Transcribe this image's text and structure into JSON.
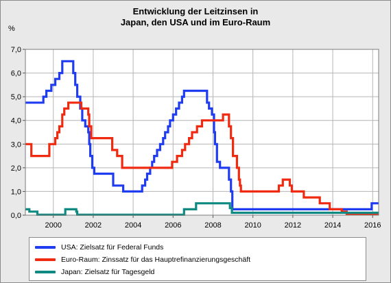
{
  "chart_data": {
    "type": "line",
    "title_lines": [
      "Entwicklung der Leitzinsen in",
      "Japan, den USA und im Euro-Raum"
    ],
    "unit_label": "%",
    "xlim": [
      1998.6,
      2016.3
    ],
    "ylim": [
      0,
      7
    ],
    "x_ticks": [
      2000,
      2002,
      2004,
      2006,
      2008,
      2010,
      2012,
      2014,
      2016
    ],
    "y_ticks": [
      "0,0",
      "1,0",
      "2,0",
      "3,0",
      "4,0",
      "5,0",
      "6,0",
      "7,0"
    ],
    "grid": true,
    "legend_position": "bottom",
    "series": [
      {
        "name": "USA: Zielsatz für Federal Funds",
        "color": "#1f3cf0",
        "step": true,
        "points": [
          [
            1998.6,
            4.75
          ],
          [
            1999.5,
            5.0
          ],
          [
            1999.65,
            5.25
          ],
          [
            1999.9,
            5.5
          ],
          [
            2000.1,
            5.75
          ],
          [
            2000.3,
            6.0
          ],
          [
            2000.45,
            6.5
          ],
          [
            2001.0,
            6.0
          ],
          [
            2001.1,
            5.5
          ],
          [
            2001.2,
            5.0
          ],
          [
            2001.35,
            4.5
          ],
          [
            2001.45,
            4.0
          ],
          [
            2001.6,
            3.75
          ],
          [
            2001.75,
            3.5
          ],
          [
            2001.8,
            3.0
          ],
          [
            2001.85,
            2.5
          ],
          [
            2001.95,
            2.0
          ],
          [
            2002.05,
            1.75
          ],
          [
            2003.0,
            1.25
          ],
          [
            2003.5,
            1.0
          ],
          [
            2004.45,
            1.25
          ],
          [
            2004.6,
            1.5
          ],
          [
            2004.7,
            1.75
          ],
          [
            2004.85,
            2.0
          ],
          [
            2004.95,
            2.25
          ],
          [
            2005.05,
            2.5
          ],
          [
            2005.2,
            2.75
          ],
          [
            2005.35,
            3.0
          ],
          [
            2005.5,
            3.25
          ],
          [
            2005.6,
            3.5
          ],
          [
            2005.75,
            3.75
          ],
          [
            2005.85,
            4.0
          ],
          [
            2006.0,
            4.25
          ],
          [
            2006.15,
            4.5
          ],
          [
            2006.3,
            4.75
          ],
          [
            2006.45,
            5.0
          ],
          [
            2006.55,
            5.25
          ],
          [
            2007.7,
            4.75
          ],
          [
            2007.8,
            4.5
          ],
          [
            2007.95,
            4.25
          ],
          [
            2008.05,
            3.5
          ],
          [
            2008.1,
            3.0
          ],
          [
            2008.2,
            2.25
          ],
          [
            2008.35,
            2.0
          ],
          [
            2008.8,
            1.5
          ],
          [
            2008.9,
            1.0
          ],
          [
            2008.97,
            0.25
          ],
          [
            2015.95,
            0.5
          ],
          [
            2016.3,
            0.5
          ]
        ]
      },
      {
        "name": "Euro-Raum: Zinssatz für das Hauptrefinanzierungsgeschäft",
        "color": "#f02a10",
        "step": true,
        "points": [
          [
            1998.6,
            3.0
          ],
          [
            1998.9,
            2.5
          ],
          [
            1999.8,
            3.0
          ],
          [
            2000.1,
            3.25
          ],
          [
            2000.2,
            3.5
          ],
          [
            2000.3,
            3.75
          ],
          [
            2000.45,
            4.25
          ],
          [
            2000.55,
            4.5
          ],
          [
            2000.75,
            4.75
          ],
          [
            2001.4,
            4.5
          ],
          [
            2001.75,
            4.25
          ],
          [
            2001.8,
            3.75
          ],
          [
            2001.9,
            3.25
          ],
          [
            2002.95,
            2.75
          ],
          [
            2003.2,
            2.5
          ],
          [
            2003.45,
            2.0
          ],
          [
            2005.95,
            2.25
          ],
          [
            2006.2,
            2.5
          ],
          [
            2006.45,
            2.75
          ],
          [
            2006.6,
            3.0
          ],
          [
            2006.8,
            3.25
          ],
          [
            2006.95,
            3.5
          ],
          [
            2007.2,
            3.75
          ],
          [
            2007.45,
            4.0
          ],
          [
            2008.5,
            4.25
          ],
          [
            2008.8,
            3.75
          ],
          [
            2008.9,
            3.25
          ],
          [
            2009.0,
            2.5
          ],
          [
            2009.2,
            2.0
          ],
          [
            2009.3,
            1.5
          ],
          [
            2009.35,
            1.25
          ],
          [
            2009.4,
            1.0
          ],
          [
            2011.3,
            1.25
          ],
          [
            2011.5,
            1.5
          ],
          [
            2011.85,
            1.25
          ],
          [
            2011.95,
            1.0
          ],
          [
            2012.55,
            0.75
          ],
          [
            2013.35,
            0.5
          ],
          [
            2013.85,
            0.25
          ],
          [
            2014.45,
            0.15
          ],
          [
            2014.7,
            0.05
          ],
          [
            2016.3,
            0.05
          ]
        ]
      },
      {
        "name": "Japan: Zielsatz für Tagesgeld",
        "color": "#0f8a82",
        "step": true,
        "points": [
          [
            1998.6,
            0.25
          ],
          [
            1998.8,
            0.15
          ],
          [
            1999.2,
            0.02
          ],
          [
            2000.6,
            0.25
          ],
          [
            2001.15,
            0.15
          ],
          [
            2001.2,
            0.02
          ],
          [
            2006.55,
            0.25
          ],
          [
            2007.15,
            0.5
          ],
          [
            2008.85,
            0.3
          ],
          [
            2008.95,
            0.1
          ],
          [
            2016.3,
            0.1
          ]
        ]
      }
    ]
  }
}
